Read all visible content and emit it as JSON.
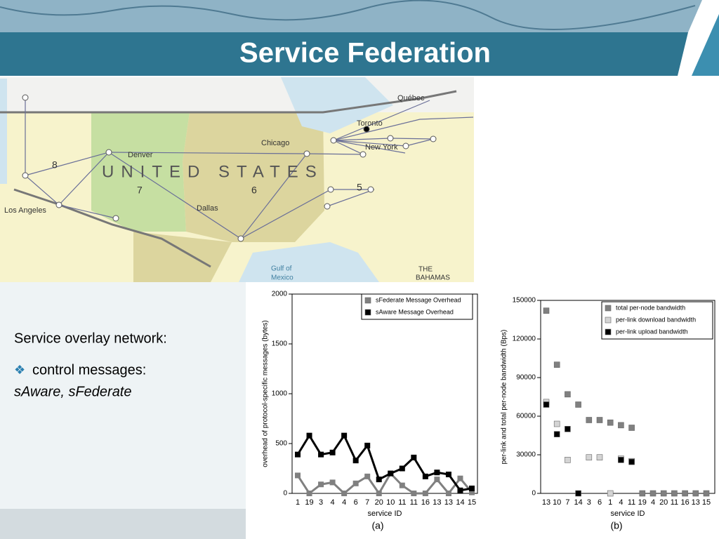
{
  "slide": {
    "title": "Service Federation",
    "bullets": [
      "Service overlay network:",
      "control messages:",
      "sAware, sFederate"
    ]
  },
  "map": {
    "labels": [
      "Québec",
      "Toronto",
      "Chicago",
      "New York",
      "Denver",
      "UNITED STATES",
      "8",
      "7",
      "6",
      "5",
      "Los Angeles",
      "Dallas",
      "Gulf of",
      "Mexico",
      "THE",
      "BAHAMAS"
    ]
  },
  "chart_data": [
    {
      "type": "line",
      "caption": "(a)",
      "x_label": "service ID",
      "y_label": "overhead of protocol-specific messages (bytes)",
      "categories": [
        "1",
        "19",
        "3",
        "4",
        "4",
        "6",
        "7",
        "20",
        "10",
        "11",
        "11",
        "16",
        "13",
        "13",
        "14",
        "15"
      ],
      "series": [
        {
          "name": "sFederate Message Overhead",
          "color": "#808080",
          "values": [
            180,
            0,
            90,
            110,
            0,
            100,
            170,
            0,
            200,
            80,
            0,
            0,
            140,
            0,
            150,
            10
          ]
        },
        {
          "name": "sAware Message Overhead",
          "color": "#000000",
          "values": [
            390,
            580,
            390,
            410,
            580,
            330,
            480,
            140,
            200,
            250,
            360,
            170,
            210,
            190,
            30,
            50
          ]
        }
      ],
      "ylim": [
        0,
        2000
      ],
      "yticks": [
        0,
        500,
        1000,
        1500,
        2000
      ]
    },
    {
      "type": "scatter",
      "caption": "(b)",
      "x_label": "service ID",
      "y_label": "per-link and total per-node bandwidth (Bps)",
      "categories": [
        "13",
        "10",
        "7",
        "14",
        "3",
        "6",
        "1",
        "4",
        "11",
        "19",
        "4",
        "20",
        "11",
        "16",
        "13",
        "15"
      ],
      "series": [
        {
          "name": "total per-node bandwidth",
          "color": "#808080",
          "values": [
            142000,
            100000,
            77000,
            69000,
            57000,
            57000,
            55000,
            53000,
            51000,
            0,
            0,
            0,
            0,
            0,
            0,
            0
          ]
        },
        {
          "name": "per-link download bandwidth",
          "color": "#d4d4d4",
          "values": [
            71000,
            54000,
            26000,
            null,
            28000,
            28000,
            0,
            27000,
            25000,
            null,
            null,
            null,
            null,
            null,
            null,
            null
          ]
        },
        {
          "name": "per-link upload bandwidth",
          "color": "#000000",
          "values": [
            69000,
            46000,
            50000,
            0,
            null,
            null,
            null,
            26000,
            24500,
            null,
            null,
            null,
            null,
            null,
            null,
            null
          ]
        }
      ],
      "ylim": [
        0,
        150000
      ],
      "yticks": [
        0,
        30000,
        60000,
        90000,
        120000,
        150000
      ]
    }
  ]
}
